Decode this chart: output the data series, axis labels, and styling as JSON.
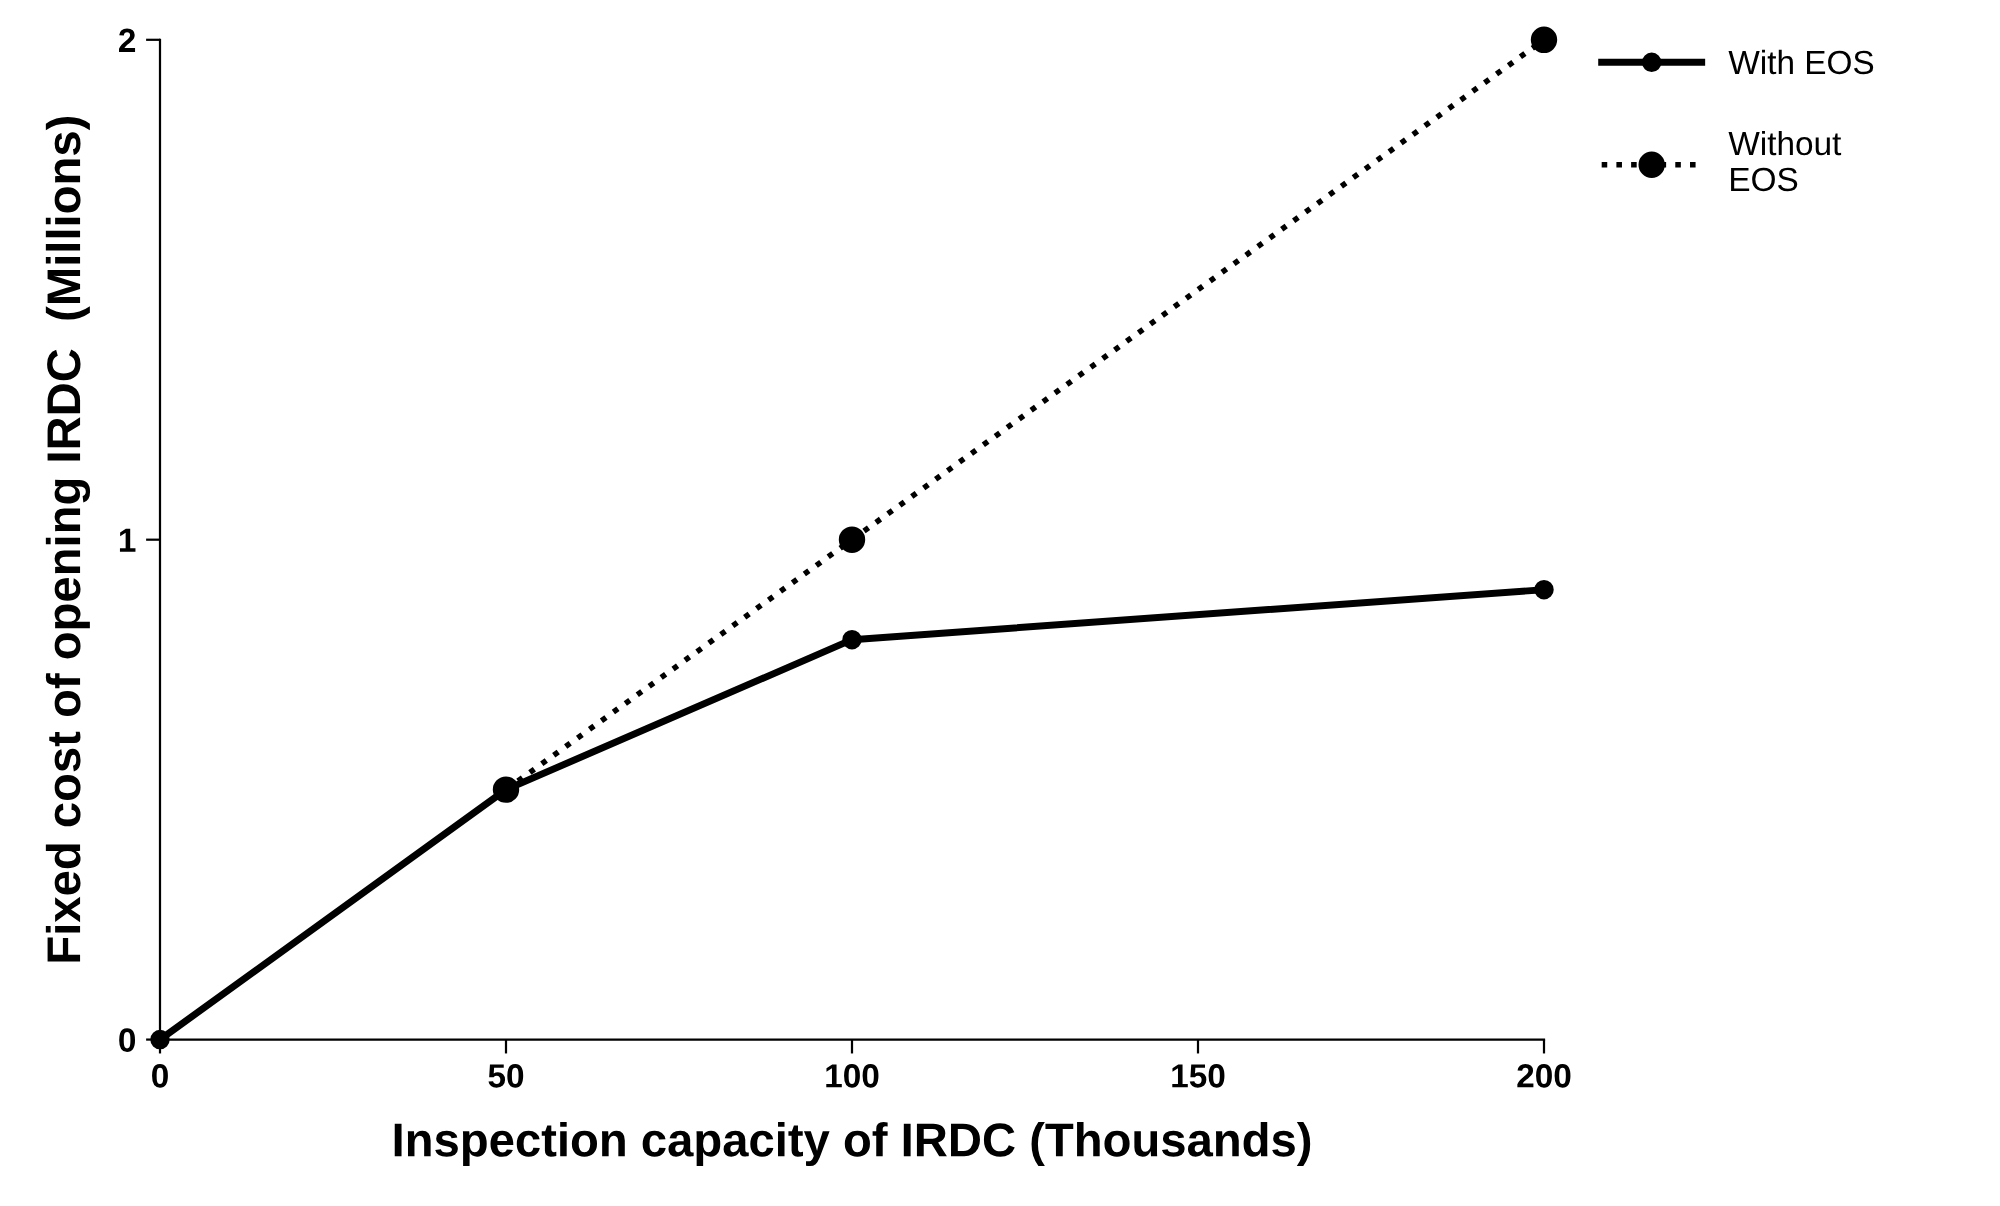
{
  "chart_data": {
    "type": "line",
    "xlabel": "Inspection capacity of IRDC (Thousands)",
    "ylabel": "Fixed cost of opening IRDC  (Millions)",
    "series": [
      {
        "name": "With EOS",
        "color": "#000000",
        "x": [
          0,
          50,
          100,
          200
        ],
        "values": [
          0,
          0.5,
          0.8,
          0.9
        ],
        "line_style": "solid"
      },
      {
        "name": "Without EOS",
        "color": "#000000",
        "x": [
          50,
          100,
          200
        ],
        "values": [
          0.5,
          1,
          2
        ],
        "line_style": "dotted"
      }
    ],
    "marker": "circle",
    "xlim": [
      0,
      200
    ],
    "xticks": [
      0,
      50,
      100,
      150,
      200
    ],
    "ylim": [
      0,
      2
    ],
    "yticks": [
      0,
      1,
      2
    ],
    "grid": false,
    "legend": "top right"
  }
}
